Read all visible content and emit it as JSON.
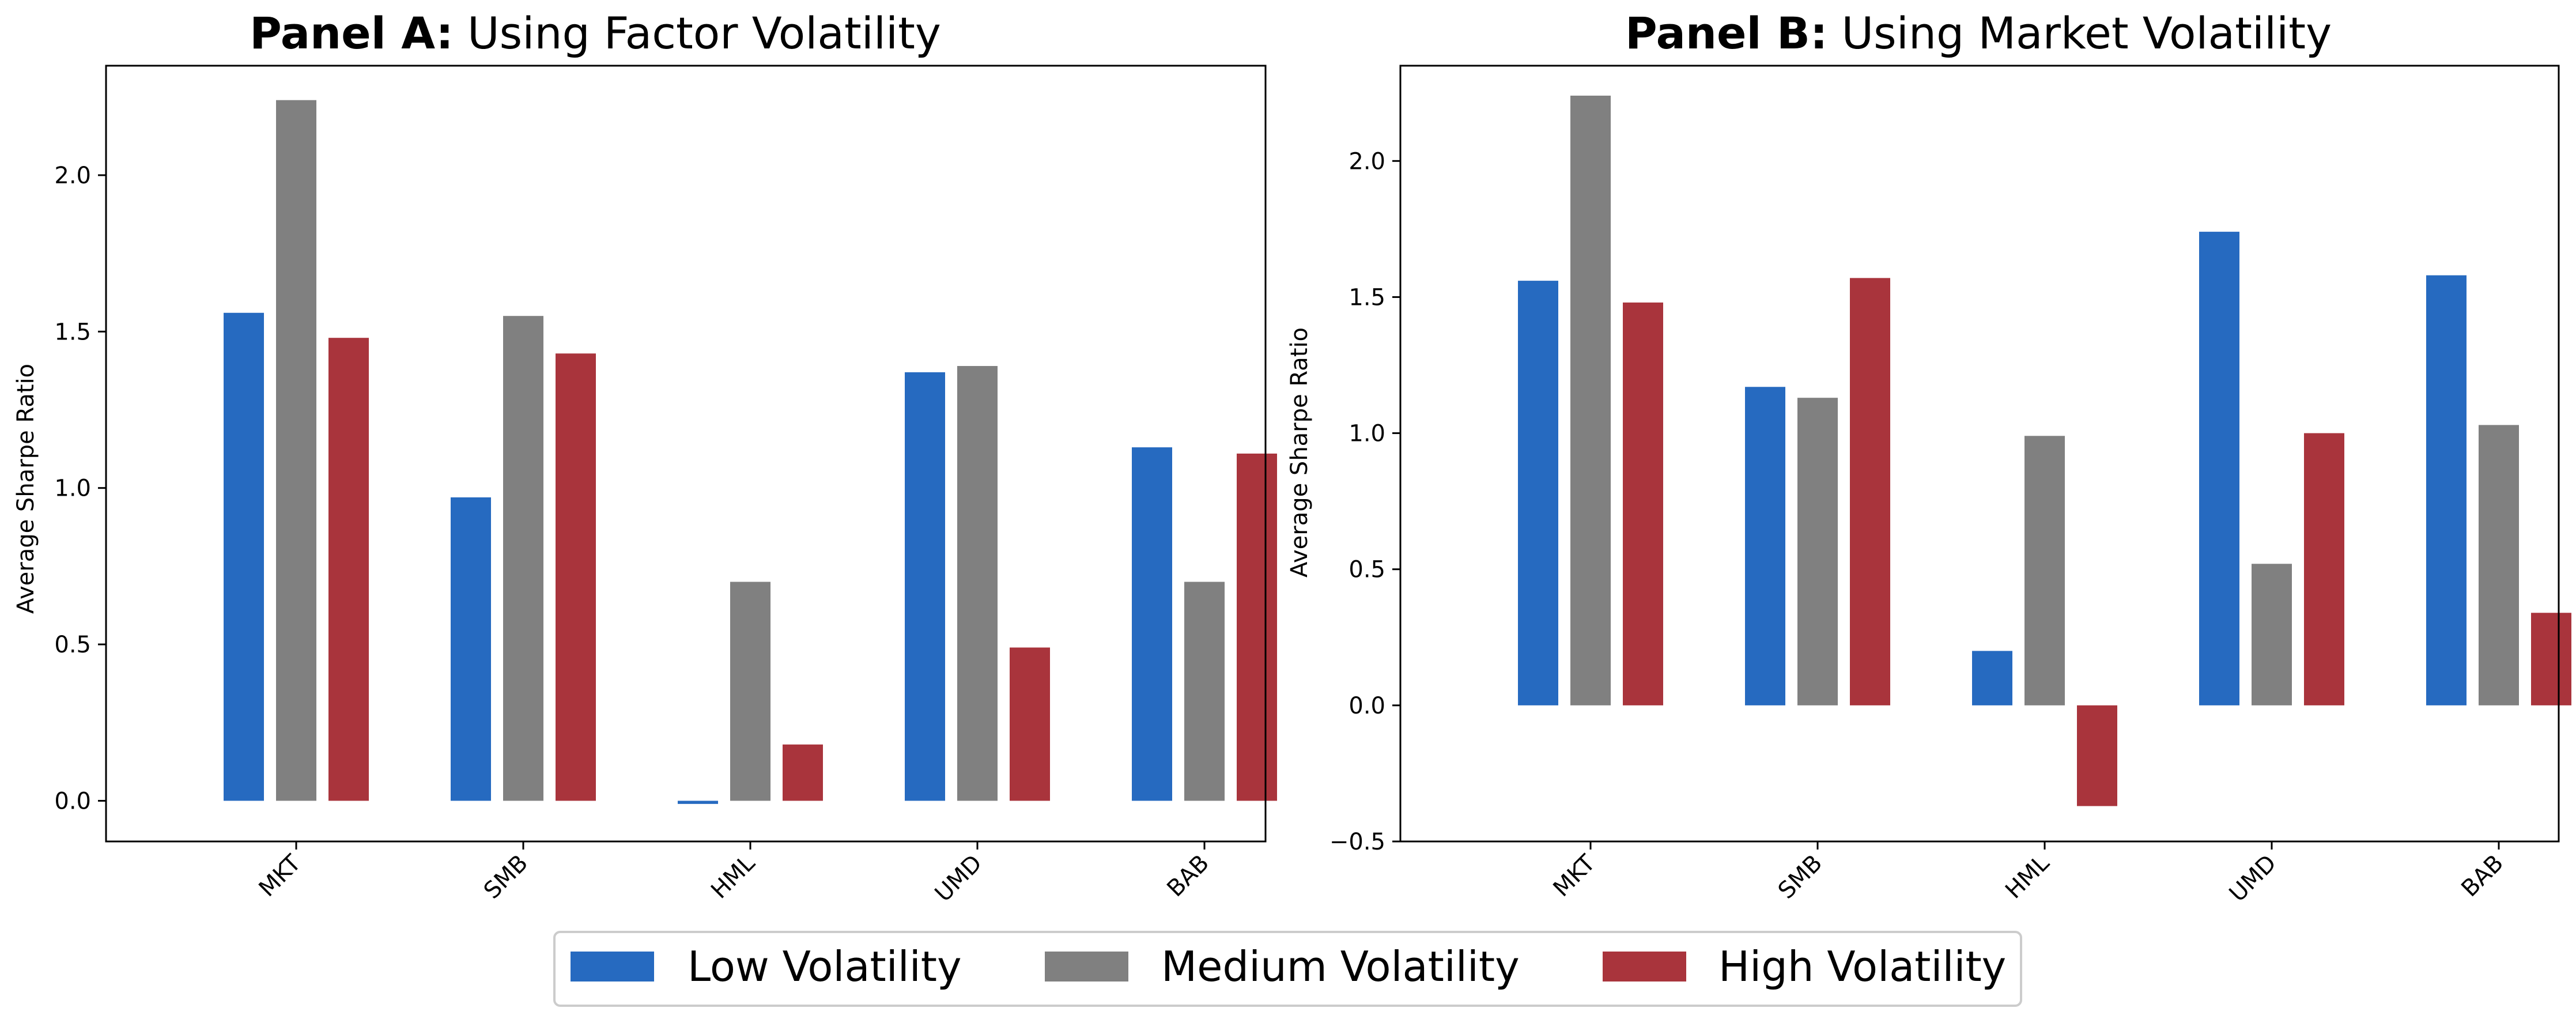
{
  "chart_data": [
    {
      "type": "bar",
      "title_bold": "Panel A:",
      "title_rest": " Using Factor Volatility",
      "xlabel": "",
      "ylabel": "Average Sharpe Ratio",
      "categories": [
        "MKT",
        "SMB",
        "HML",
        "UMD",
        "BAB"
      ],
      "ylim": [
        -0.13,
        2.35
      ],
      "yticks": [
        0.0,
        0.5,
        1.0,
        1.5,
        2.0
      ],
      "ytick_labels": [
        "0.0",
        "0.5",
        "1.0",
        "1.5",
        "2.0"
      ],
      "grid": false,
      "series": [
        {
          "name": "Low Volatility",
          "color": "#266AC0",
          "values": [
            1.56,
            0.97,
            -0.01,
            1.37,
            1.13
          ]
        },
        {
          "name": "Medium Volatility",
          "color": "#808080",
          "values": [
            2.24,
            1.55,
            0.7,
            1.39,
            0.7
          ]
        },
        {
          "name": "High Volatility",
          "color": "#A9343C",
          "values": [
            1.48,
            1.43,
            0.18,
            0.49,
            1.11
          ]
        }
      ]
    },
    {
      "type": "bar",
      "title_bold": "Panel B:",
      "title_rest": " Using Market Volatility",
      "xlabel": "",
      "ylabel": "Average Sharpe Ratio",
      "categories": [
        "MKT",
        "SMB",
        "HML",
        "UMD",
        "BAB"
      ],
      "ylim": [
        -0.5,
        2.35
      ],
      "yticks": [
        -0.5,
        0.0,
        0.5,
        1.0,
        1.5,
        2.0
      ],
      "ytick_labels": [
        "−0.5",
        "0.0",
        "0.5",
        "1.0",
        "1.5",
        "2.0"
      ],
      "grid": false,
      "series": [
        {
          "name": "Low Volatility",
          "color": "#266AC0",
          "values": [
            1.56,
            1.17,
            0.2,
            1.74,
            1.58
          ]
        },
        {
          "name": "Medium Volatility",
          "color": "#808080",
          "values": [
            2.24,
            1.13,
            0.99,
            0.52,
            1.03
          ]
        },
        {
          "name": "High Volatility",
          "color": "#A9343C",
          "values": [
            1.48,
            1.57,
            -0.37,
            1.0,
            0.34
          ]
        }
      ]
    }
  ],
  "legend": {
    "placement": "bottom-center",
    "items": [
      {
        "label": "Low Volatility",
        "color": "#266AC0"
      },
      {
        "label": "Medium Volatility",
        "color": "#808080"
      },
      {
        "label": "High Volatility",
        "color": "#A9343C"
      }
    ]
  }
}
